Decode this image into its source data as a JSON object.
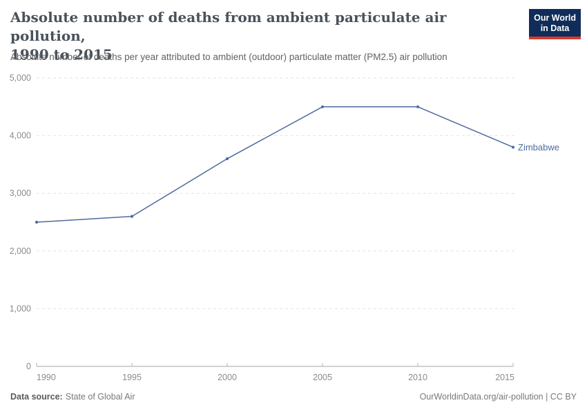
{
  "header": {
    "title_lines": [
      "Absolute number of deaths from ambient particulate air pollution,",
      "1990 to 2015"
    ],
    "subtitle": "Absolute number of deaths per year attributed to ambient (outdoor) particulate matter (PM2.5) air pollution",
    "logo": {
      "line1": "Our World",
      "line2": "in Data"
    }
  },
  "chart_data": {
    "type": "line",
    "title": "Absolute number of deaths from ambient particulate air pollution, 1990 to 2015",
    "xlabel": "",
    "ylabel": "",
    "x": [
      1990,
      1995,
      2000,
      2005,
      2010,
      2015
    ],
    "series": [
      {
        "name": "Zimbabwe",
        "values": [
          2500,
          2600,
          3600,
          4500,
          4500,
          3800
        ],
        "color": "#4c6a9e"
      }
    ],
    "xticks": [
      {
        "value": 1990,
        "label": "1990"
      },
      {
        "value": 1995,
        "label": "1995"
      },
      {
        "value": 2000,
        "label": "2000"
      },
      {
        "value": 2005,
        "label": "2005"
      },
      {
        "value": 2010,
        "label": "2010"
      },
      {
        "value": 2015,
        "label": "2015"
      }
    ],
    "yticks": [
      {
        "value": 0,
        "label": "0"
      },
      {
        "value": 1000,
        "label": "1,000"
      },
      {
        "value": 2000,
        "label": "2,000"
      },
      {
        "value": 3000,
        "label": "3,000"
      },
      {
        "value": 4000,
        "label": "4,000"
      },
      {
        "value": 5000,
        "label": "5,000"
      }
    ],
    "ylim": [
      0,
      5000
    ],
    "grid": "horizontal-dashed",
    "legend_position": "end-of-line"
  },
  "footer": {
    "datasource_label": "Data source:",
    "datasource_value": "State of Global Air",
    "credit": "OurWorldinData.org/air-pollution | CC BY"
  },
  "colors": {
    "series": "#4c6a9e",
    "grid": "#e2e2e2",
    "axis": "#a3a3a3",
    "tick_text": "#8b8b8b",
    "title_text": "#49525a",
    "subtitle_text": "#616161",
    "logo_bg": "#102d59",
    "logo_bar": "#d8392d"
  }
}
